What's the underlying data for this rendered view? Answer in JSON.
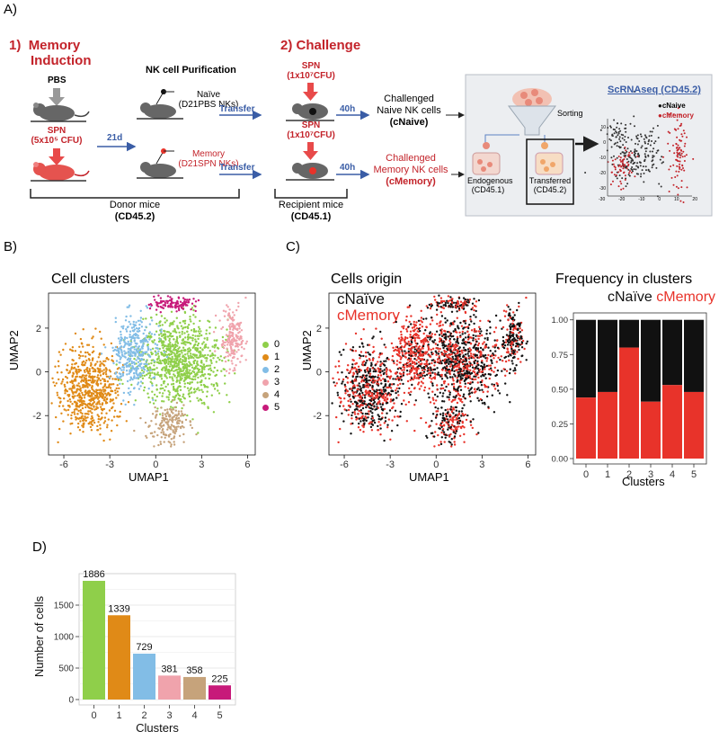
{
  "panel_a": {
    "label": "A)",
    "step1_num": "1)",
    "step1_title_line1": "Memory",
    "step1_title_line2": "Induction",
    "step2_title": "2) Challenge",
    "nk_purification": "NK cell Purification",
    "pbs": "PBS",
    "spn_donor_line1": "SPN",
    "spn_donor_line2": "(5x10⁵ CFU)",
    "naive_line1": "Naïve",
    "naive_line2": "(D21PBS NKs)",
    "memory_line1": "Memory",
    "memory_line2": "(D21SPN NKs)",
    "days_21": "21d",
    "transfer_1": "Transfer",
    "transfer_2": "Transfer",
    "spn_chal1_line1": "SPN",
    "spn_chal1_line2": "(1x10⁷CFU)",
    "spn_chal2_line1": "SPN",
    "spn_chal2_line2": "(1x10⁷CFU)",
    "hours_1": "40h",
    "hours_2": "40h",
    "challenged_naive_line1": "Challenged",
    "challenged_naive_line2": "Naive NK cells",
    "challenged_naive_line3": "(cNaive)",
    "challenged_memory_line1": "Challenged",
    "challenged_memory_line2": "Memory NK cells",
    "challenged_memory_line3": "(cMemory)",
    "donor_mice_line1": "Donor mice",
    "donor_mice_line2": "(CD45.2)",
    "recipient_mice_line1": "Recipient mice",
    "recipient_mice_line2": "(CD45.1)",
    "scrnaseq_title": "ScRNAseq (CD45.2)",
    "sorting": "Sorting",
    "endogenous_line1": "Endogenous",
    "endogenous_line2": "(CD45.1)",
    "transferred_line1": "Transferred",
    "transferred_line2": "(CD45.2)",
    "inset_legend_naive": "cNaive",
    "inset_legend_memory": "cMemory",
    "inset_yticks": [
      "10",
      "0",
      "-10",
      "-20",
      "-30"
    ],
    "inset_xticks": [
      "-30",
      "-20",
      "-10",
      "0",
      "10",
      "20"
    ]
  },
  "panel_b": {
    "label": "B)",
    "title": "Cell clusters",
    "xlabel": "UMAP1",
    "ylabel": "UMAP2",
    "xticks": [
      "-6",
      "-3",
      "0",
      "3",
      "6"
    ],
    "yticks": [
      "2",
      "0",
      "-2"
    ],
    "legend": [
      "0",
      "1",
      "2",
      "3",
      "4",
      "5"
    ]
  },
  "panel_c": {
    "label": "C)",
    "title": "Cells origin",
    "legend_naive": "cNaïve",
    "legend_memory": "cMemory",
    "xlabel": "UMAP1",
    "ylabel": "UMAP2",
    "xticks": [
      "-6",
      "-3",
      "0",
      "3",
      "6"
    ],
    "yticks": [
      "2",
      "0",
      "-2"
    ],
    "freq_title": "Frequency in clusters",
    "freq_legend_naive": "cNaïve",
    "freq_legend_memory": "cMemory",
    "freq_xlabel": "Clusters"
  },
  "panel_d": {
    "label": "D)"
  },
  "colors": {
    "cluster": [
      "#8fcf4a",
      "#e08a17",
      "#82bde6",
      "#f0a3ac",
      "#c6a37b",
      "#c71a7a"
    ],
    "naive": "#111111",
    "memory": "#e8332a",
    "accent_red": "#c3232a",
    "accent_blue": "#3a5da6"
  },
  "chart_data": [
    {
      "type": "bar",
      "title": "Frequency in clusters",
      "xlabel": "Clusters",
      "ylabel": "",
      "categories": [
        "0",
        "1",
        "2",
        "3",
        "4",
        "5"
      ],
      "series": [
        {
          "name": "cMemory",
          "values": [
            0.44,
            0.48,
            0.8,
            0.41,
            0.53,
            0.48
          ]
        },
        {
          "name": "cNaïve",
          "values": [
            0.56,
            0.52,
            0.2,
            0.59,
            0.47,
            0.52
          ]
        }
      ],
      "stacked": true,
      "ylim": [
        0,
        1
      ],
      "yticks": [
        "0.00",
        "0.25",
        "0.50",
        "0.75",
        "1.00"
      ]
    },
    {
      "type": "bar",
      "title": "",
      "xlabel": "Clusters",
      "ylabel": "Number of cells",
      "categories": [
        "0",
        "1",
        "2",
        "3",
        "4",
        "5"
      ],
      "values": [
        1886,
        1339,
        729,
        381,
        358,
        225
      ],
      "data_labels": [
        "1886",
        "1339",
        "729",
        "381",
        "358",
        "225"
      ],
      "ylim": [
        0,
        2000
      ],
      "yticks": [
        "0",
        "500",
        "1000",
        "1500"
      ]
    }
  ]
}
